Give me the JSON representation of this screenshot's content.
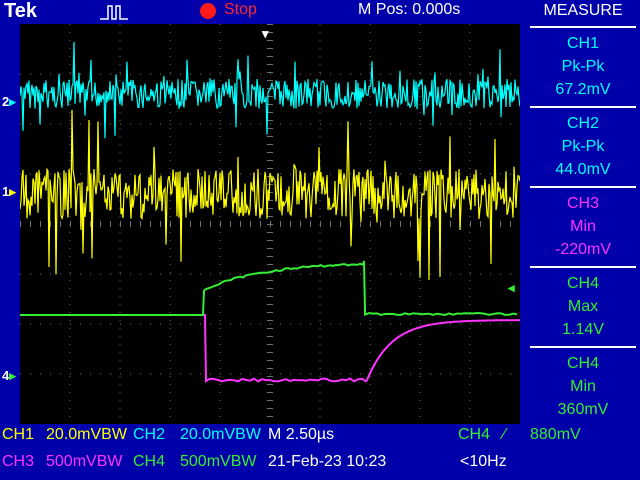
{
  "header": {
    "brand": "Tek",
    "run_state": "Stop",
    "m_pos": "M Pos: 0.000s",
    "trigger_icon": "trigger-pulse-icon"
  },
  "colors": {
    "ch1": "#ffff00",
    "ch2": "#00ffff",
    "ch3": "#ff33ff",
    "ch4": "#33ee33",
    "accent_bg": "#0000aa"
  },
  "markers": {
    "ch2": "2",
    "ch1": "1",
    "ch4": "4"
  },
  "measure": {
    "title": "MEASURE",
    "items": [
      {
        "ch": "CH1",
        "type": "Pk-Pk",
        "value": "67.2mV",
        "color": "#00ffff"
      },
      {
        "ch": "CH2",
        "type": "Pk-Pk",
        "value": "44.0mV",
        "color": "#00ffff"
      },
      {
        "ch": "CH3",
        "type": "Min",
        "value": "-220mV",
        "color": "#ff33ff"
      },
      {
        "ch": "CH4",
        "type": "Max",
        "value": "1.14V",
        "color": "#33ee33"
      },
      {
        "ch": "CH4",
        "type": "Min",
        "value": "360mV",
        "color": "#33ee33"
      }
    ]
  },
  "bottom": {
    "row1": {
      "ch1": "CH1",
      "ch1_scale": "20.0mVBW",
      "ch2": "CH2",
      "ch2_scale": "20.0mVBW",
      "timebase": "M 2.50µs",
      "trig_ch": "CH4",
      "trig_slope": "∕",
      "trig_level": "880mV"
    },
    "row2": {
      "ch3": "CH3",
      "ch3_scale": "500mVBW",
      "ch4": "CH4",
      "ch4_scale": "500mVBW",
      "date": "21-Feb-23 10:23",
      "freq": "<10Hz"
    }
  }
}
